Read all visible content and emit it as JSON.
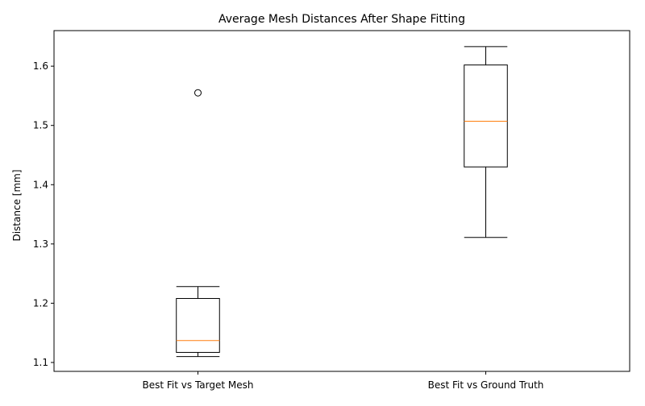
{
  "chart_data": {
    "type": "box",
    "title": "Average Mesh Distances After Shape Fitting",
    "xlabel": "",
    "ylabel": "Distance [mm]",
    "ylim": [
      1.085,
      1.66
    ],
    "yticks": [
      1.1,
      1.2,
      1.3,
      1.4,
      1.5,
      1.6
    ],
    "ytick_labels": [
      "1.1",
      "1.2",
      "1.3",
      "1.4",
      "1.5",
      "1.6"
    ],
    "categories": [
      "Best Fit vs Target Mesh",
      "Best Fit vs Ground Truth"
    ],
    "boxes": [
      {
        "whisker_low": 1.11,
        "q1": 1.117,
        "median": 1.137,
        "q3": 1.208,
        "whisker_high": 1.228,
        "outliers": [
          1.555
        ]
      },
      {
        "whisker_low": 1.311,
        "q1": 1.43,
        "median": 1.507,
        "q3": 1.602,
        "whisker_high": 1.633,
        "outliers": []
      }
    ],
    "grid": false,
    "colors": {
      "box": "#000000",
      "median": "#ff7f0e",
      "whisker": "#000000",
      "outlier": "#000000"
    }
  }
}
